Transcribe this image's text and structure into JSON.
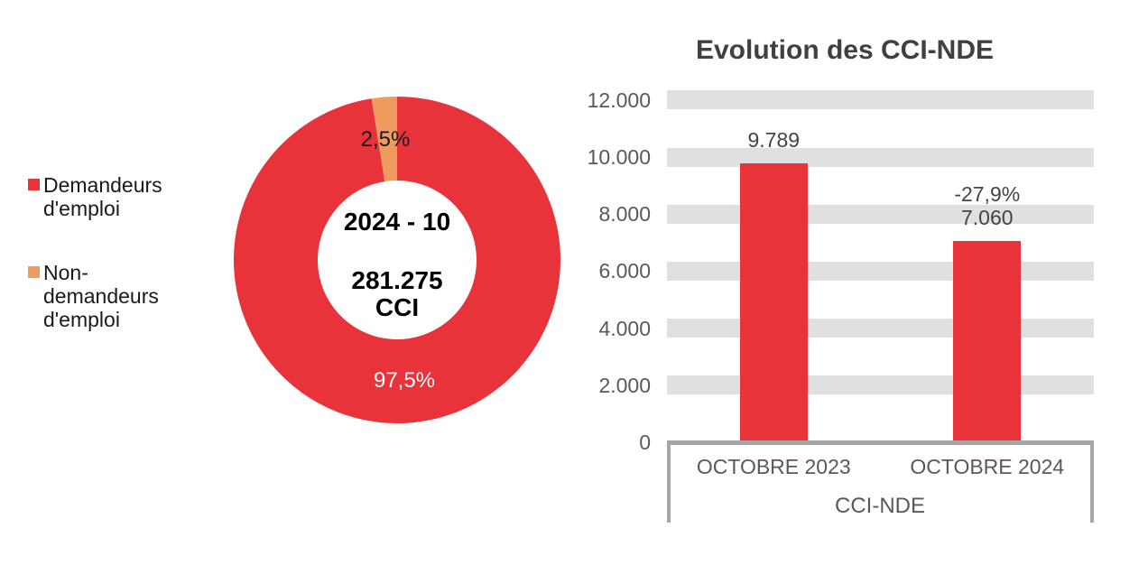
{
  "chart_data": [
    {
      "type": "pie",
      "subtype": "donut",
      "legend_position": "left",
      "center_label_line1": "2024 - 10",
      "center_label_line2": "281.275",
      "center_label_line3": "CCI",
      "slices": [
        {
          "label": "Demandeurs d'emploi",
          "value_pct": 97.5,
          "display": "97,5%",
          "color": "#e9333a",
          "label_color": "#ffffff"
        },
        {
          "label": "Non-demandeurs d'emploi",
          "value_pct": 2.5,
          "display": "2,5%",
          "color": "#f09b5e",
          "label_color": "#1a1a1a"
        }
      ]
    },
    {
      "type": "bar",
      "title": "Evolution des CCI-NDE",
      "categories": [
        "OCTOBRE 2023",
        "OCTOBRE 2024"
      ],
      "series": [
        {
          "name": "CCI-NDE",
          "values": [
            9789,
            7060
          ]
        }
      ],
      "values": [
        9789,
        7060
      ],
      "value_labels": [
        "9.789",
        "7.060"
      ],
      "annotations": [
        {
          "category_index": 1,
          "text": "-27,9%"
        }
      ],
      "xlabel_group": "CCI-NDE",
      "ylim": [
        0,
        12000
      ],
      "ytick_step": 2000,
      "ytick_labels": [
        "0",
        "2.000",
        "4.000",
        "6.000",
        "8.000",
        "10.000",
        "12.000"
      ],
      "grid": "horizontal-thick-bands",
      "legend_position": "none",
      "bar_color": "#e9333a",
      "gridband_color": "#e0e0e0",
      "axis_line_color": "#a6a6a6"
    }
  ]
}
